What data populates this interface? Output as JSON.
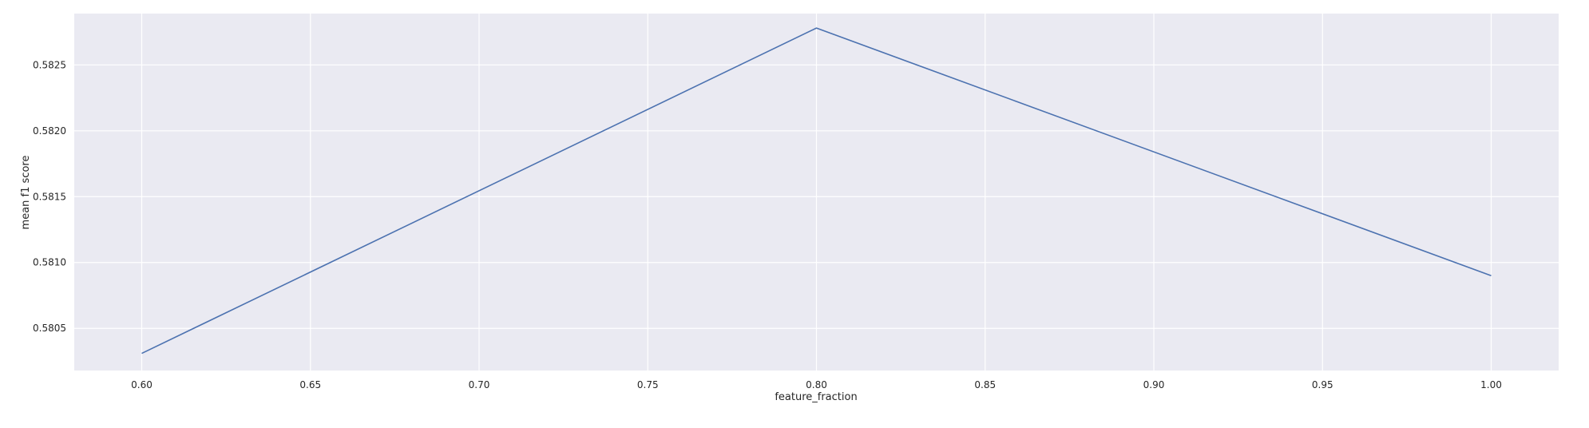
{
  "chart_data": {
    "type": "line",
    "title": "",
    "xlabel": "feature_fraction",
    "ylabel": "mean f1 score",
    "xlim": [
      0.58,
      1.02
    ],
    "ylim": [
      0.58018,
      0.58289
    ],
    "x_ticks": [
      0.6,
      0.65,
      0.7,
      0.75,
      0.8,
      0.85,
      0.9,
      0.95,
      1.0
    ],
    "x_tick_labels": [
      "0.60",
      "0.65",
      "0.70",
      "0.75",
      "0.80",
      "0.85",
      "0.90",
      "0.95",
      "1.00"
    ],
    "y_ticks": [
      0.5805,
      0.581,
      0.5815,
      0.582,
      0.5825
    ],
    "y_tick_labels": [
      "0.5805",
      "0.5810",
      "0.5815",
      "0.5820",
      "0.5825"
    ],
    "grid": true,
    "series": [
      {
        "x": [
          0.6,
          0.8,
          1.0
        ],
        "values": [
          0.58031,
          0.58278,
          0.5809
        ]
      }
    ],
    "colors": {
      "plot_background": "#eaeaf2",
      "grid": "#ffffff",
      "line": "#4c72b0",
      "text": "#262626"
    }
  }
}
